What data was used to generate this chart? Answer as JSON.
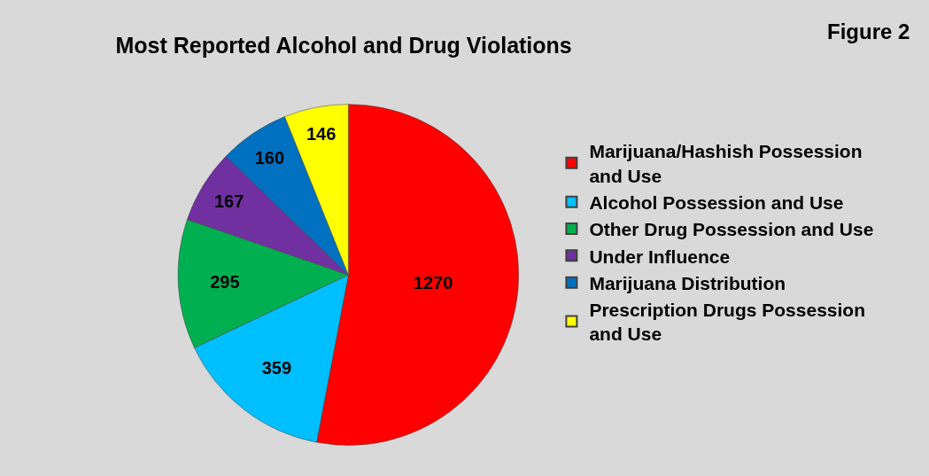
{
  "chart_data": {
    "type": "pie",
    "title": "Most Reported Alcohol and Drug Violations",
    "categories": [
      "Marijuana/Hashish Possession and Use",
      "Alcohol Possession and Use",
      "Other Drug Possession and Use",
      "Under Influence",
      "Marijuana Distribution",
      "Prescription Drugs Possession and Use"
    ],
    "values": [
      1270,
      359,
      295,
      167,
      160,
      146
    ],
    "colors": [
      "#ff0000",
      "#00bfff",
      "#00b050",
      "#7030a0",
      "#0070c0",
      "#ffff00"
    ],
    "data_labels": true,
    "legend": "right",
    "annotations": [
      "Figure 2"
    ]
  }
}
